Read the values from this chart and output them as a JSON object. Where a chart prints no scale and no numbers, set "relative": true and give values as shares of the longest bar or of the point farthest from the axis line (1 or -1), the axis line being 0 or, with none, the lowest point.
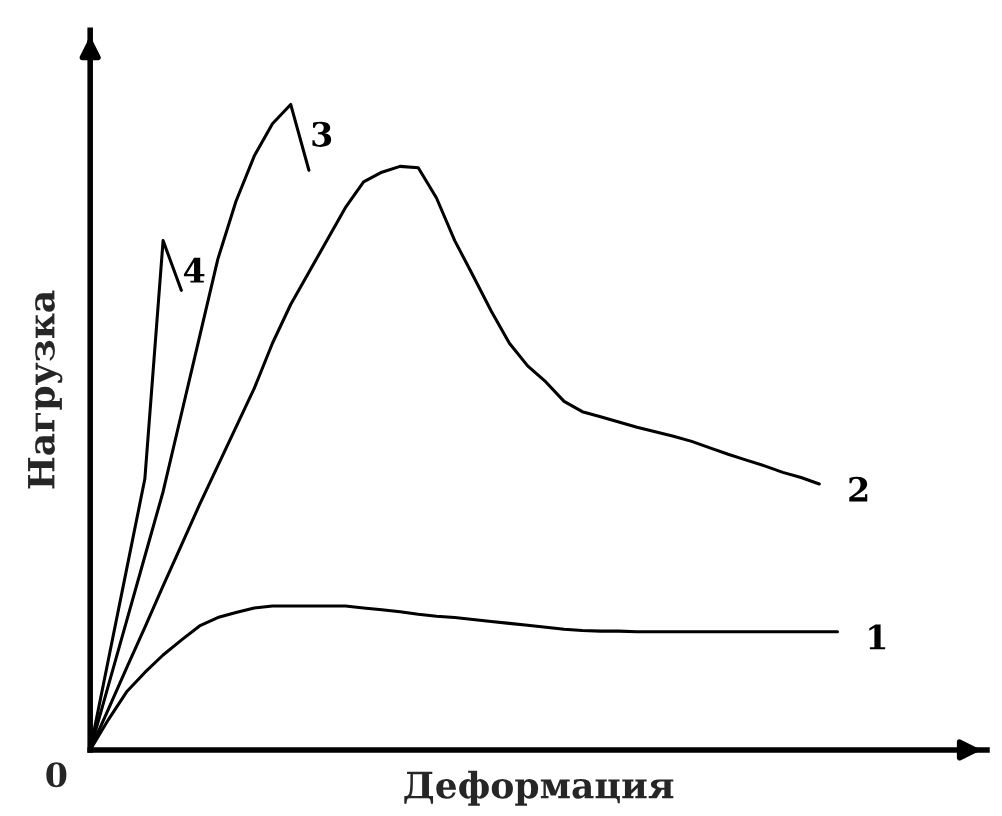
{
  "chart_data": {
    "type": "line",
    "relative": true,
    "xlabel": "Деформация",
    "ylabel": "Нагрузка",
    "annotations": [
      "0"
    ],
    "legend": false,
    "marker": "none",
    "line_style": "solid",
    "categories": [
      null,
      null,
      null,
      null,
      null,
      null,
      null,
      null,
      null,
      null,
      null,
      null,
      null,
      null,
      null,
      null,
      null,
      null,
      null,
      null,
      null,
      null,
      null,
      null,
      null,
      null,
      null,
      null,
      null,
      null,
      null,
      null,
      null,
      null,
      null,
      null,
      null,
      null,
      null,
      null,
      null,
      null
    ],
    "series": [
      {
        "name": "1",
        "color": "#000000",
        "values": [
          0,
          0.047,
          0.09,
          0.12,
          0.147,
          0.17,
          0.192,
          0.205,
          0.213,
          0.22,
          0.223,
          0.223,
          0.223,
          0.223,
          0.223,
          0.22,
          0.217,
          0.214,
          0.21,
          0.207,
          0.205,
          0.202,
          0.199,
          0.196,
          0.193,
          0.19,
          0.187,
          0.185,
          0.184,
          0.184,
          0.183,
          0.183,
          0.183,
          0.183,
          0.183,
          0.183,
          0.183,
          0.183,
          0.183,
          0.183,
          0.183,
          0.183
        ]
      },
      {
        "name": "2",
        "color": "#000000",
        "values": [
          0,
          0.063,
          0.127,
          0.19,
          0.254,
          0.317,
          0.38,
          0.44,
          0.5,
          0.56,
          0.63,
          0.69,
          0.74,
          0.79,
          0.84,
          0.88,
          0.895,
          0.904,
          0.902,
          0.855,
          0.789,
          0.735,
          0.68,
          0.63,
          0.595,
          0.57,
          0.54,
          0.524,
          0.516,
          0.508,
          0.5,
          0.493,
          0.486,
          0.478,
          0.468,
          0.458,
          0.449,
          0.44,
          0.43,
          0.422,
          0.412,
          null
        ]
      },
      {
        "name": "3",
        "color": "#000000",
        "values": [
          0,
          0.1,
          0.2,
          0.3,
          0.4,
          0.52,
          0.64,
          0.76,
          0.85,
          0.92,
          0.97,
          1.0,
          0.898,
          null,
          null,
          null,
          null,
          null,
          null,
          null,
          null,
          null,
          null,
          null,
          null,
          null,
          null,
          null,
          null,
          null,
          null,
          null,
          null,
          null,
          null,
          null,
          null,
          null,
          null,
          null,
          null,
          null
        ]
      },
      {
        "name": "4",
        "color": "#000000",
        "values": [
          0,
          0.14,
          0.28,
          0.42,
          0.789,
          0.712,
          null,
          null,
          null,
          null,
          null,
          null,
          null,
          null,
          null,
          null,
          null,
          null,
          null,
          null,
          null,
          null,
          null,
          null,
          null,
          null,
          null,
          null,
          null,
          null,
          null,
          null,
          null,
          null,
          null,
          null,
          null,
          null,
          null,
          null,
          null,
          null
        ]
      }
    ]
  }
}
